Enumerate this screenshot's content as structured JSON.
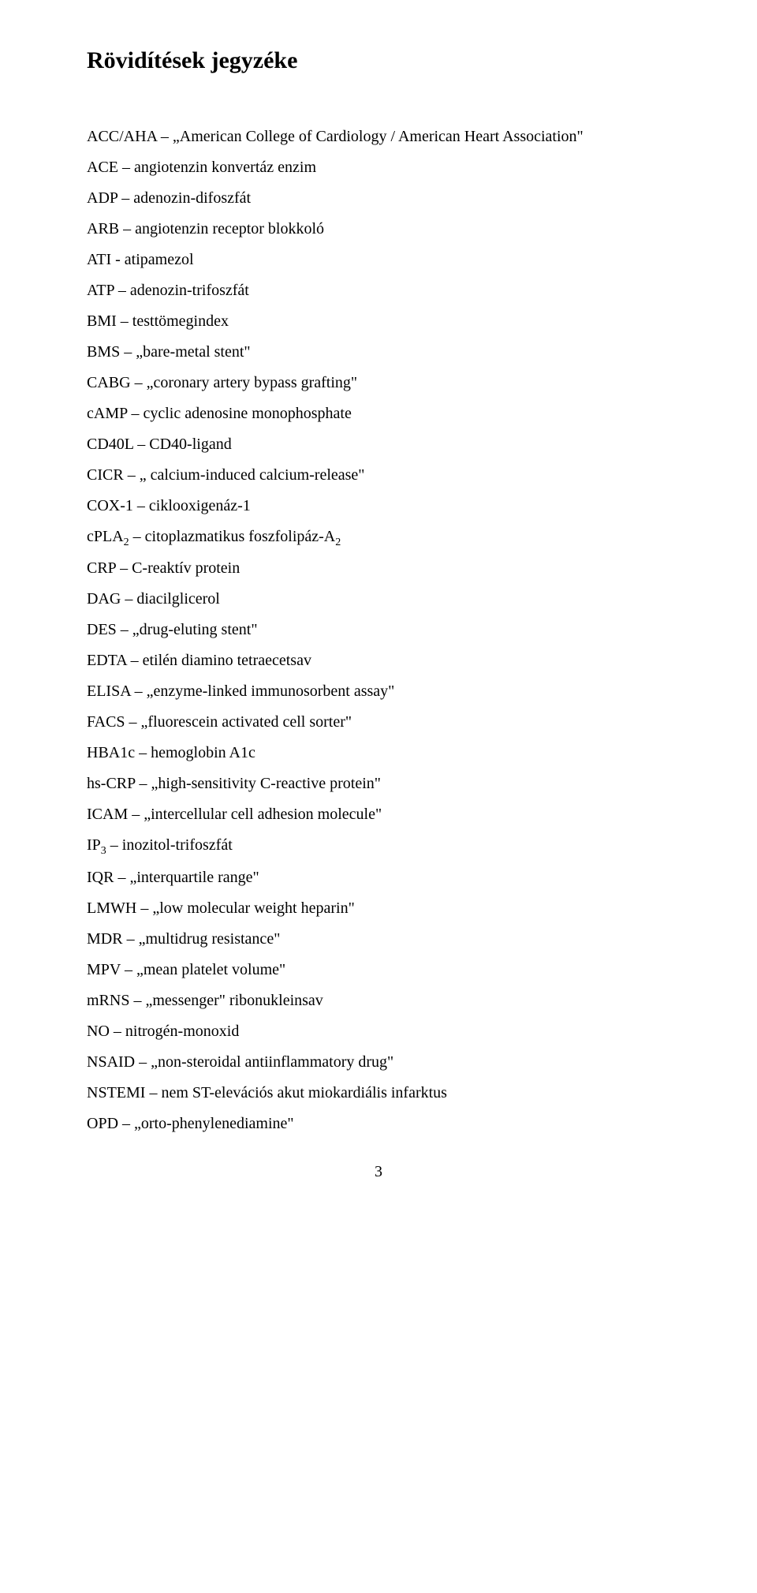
{
  "title": "Rövidítések jegyzéke",
  "entries": [
    {
      "abbr": "ACC/AHA",
      "sep": " – ",
      "def_pre": "„American College of Cardiology / American Heart Association",
      "def_post": "\""
    },
    {
      "abbr": "ACE",
      "sep": " – ",
      "def_pre": "angiotenzin konvertáz enzim",
      "def_post": ""
    },
    {
      "abbr": "ADP",
      "sep": " – ",
      "def_pre": "adenozin-difoszfát",
      "def_post": ""
    },
    {
      "abbr": "ARB",
      "sep": " – ",
      "def_pre": "angiotenzin receptor blokkoló",
      "def_post": ""
    },
    {
      "abbr": "ATI",
      "sep": " - ",
      "def_pre": "atipamezol",
      "def_post": ""
    },
    {
      "abbr": "ATP",
      "sep": " – ",
      "def_pre": "adenozin-trifoszfát",
      "def_post": ""
    },
    {
      "abbr": "BMI",
      "sep": " – ",
      "def_pre": "testtömegindex",
      "def_post": ""
    },
    {
      "abbr": "BMS",
      "sep": " – ",
      "def_pre": "„bare-metal stent\"",
      "def_post": ""
    },
    {
      "abbr": "CABG",
      "sep": " – ",
      "def_pre": "„coronary artery bypass grafting\"",
      "def_post": ""
    },
    {
      "abbr": "cAMP",
      "sep": " – ",
      "def_pre": "cyclic adenosine monophosphate",
      "def_post": ""
    },
    {
      "abbr": "CD40L",
      "sep": " – ",
      "def_pre": "CD40-ligand",
      "def_post": ""
    },
    {
      "abbr": "CICR",
      "sep": " – ",
      "def_pre": "„ calcium-induced calcium-release\"",
      "def_post": ""
    },
    {
      "abbr": "COX-1",
      "sep": " – ",
      "def_pre": "ciklooxigenáz-1",
      "def_post": ""
    },
    {
      "abbr": "cPLA",
      "abbr_sub": "2",
      "sep": " – ",
      "def_pre": "citoplazmatikus foszfolipáz-A",
      "def_sub": "2",
      "def_post": ""
    },
    {
      "abbr": "CRP",
      "sep": " – ",
      "def_pre": "C-reaktív protein",
      "def_post": ""
    },
    {
      "abbr": "DAG",
      "sep": " – ",
      "def_pre": "diacilglicerol",
      "def_post": ""
    },
    {
      "abbr": "DES",
      "sep": " – ",
      "def_pre": "„drug-eluting stent\"",
      "def_post": ""
    },
    {
      "abbr": "EDTA",
      "sep": " – ",
      "def_pre": "etilén diamino tetraecetsav",
      "def_post": ""
    },
    {
      "abbr": "ELISA",
      "sep": " – ",
      "def_pre": "„enzyme-linked immunosorbent assay\"",
      "def_post": ""
    },
    {
      "abbr": "FACS",
      "sep": " – ",
      "def_pre": "„fluorescein activated cell sorter\"",
      "def_post": ""
    },
    {
      "abbr": "HBA1c",
      "sep": " – ",
      "def_pre": "hemoglobin A1c",
      "def_post": ""
    },
    {
      "abbr": "hs-CRP",
      "sep": " – ",
      "def_pre": "„high-sensitivity C-reactive protein\"",
      "def_post": ""
    },
    {
      "abbr": "ICAM",
      "sep": " – ",
      "def_pre": "„intercellular cell adhesion molecule\"",
      "def_post": ""
    },
    {
      "abbr": "IP",
      "abbr_sub": "3",
      "sep": " – ",
      "def_pre": "inozitol-trifoszfát",
      "def_post": ""
    },
    {
      "abbr": "IQR",
      "sep": " – ",
      "def_pre": "„interquartile range\"",
      "def_post": ""
    },
    {
      "abbr": "LMWH",
      "sep": " – ",
      "def_pre": "„low molecular weight heparin\"",
      "def_post": ""
    },
    {
      "abbr": "MDR",
      "sep": " – ",
      "def_pre": "„multidrug resistance\"",
      "def_post": ""
    },
    {
      "abbr": "MPV",
      "sep": " – ",
      "def_pre": "„mean platelet volume\"",
      "def_post": ""
    },
    {
      "abbr": "mRNS",
      "sep": " – ",
      "def_pre": "„messenger\" ribonukleinsav",
      "def_post": ""
    },
    {
      "abbr": "NO",
      "sep": " – ",
      "def_pre": "nitrogén-monoxid",
      "def_post": ""
    },
    {
      "abbr": "NSAID",
      "sep": " – ",
      "def_pre": "„non-steroidal antiinflammatory drug\"",
      "def_post": ""
    },
    {
      "abbr": "NSTEMI",
      "sep": " – ",
      "def_pre": "nem ST-elevációs akut miokardiális infarktus",
      "def_post": ""
    },
    {
      "abbr": "OPD",
      "sep": " – ",
      "def_pre": "„orto-phenylenediamine\"",
      "def_post": ""
    }
  ],
  "page_number": "3"
}
